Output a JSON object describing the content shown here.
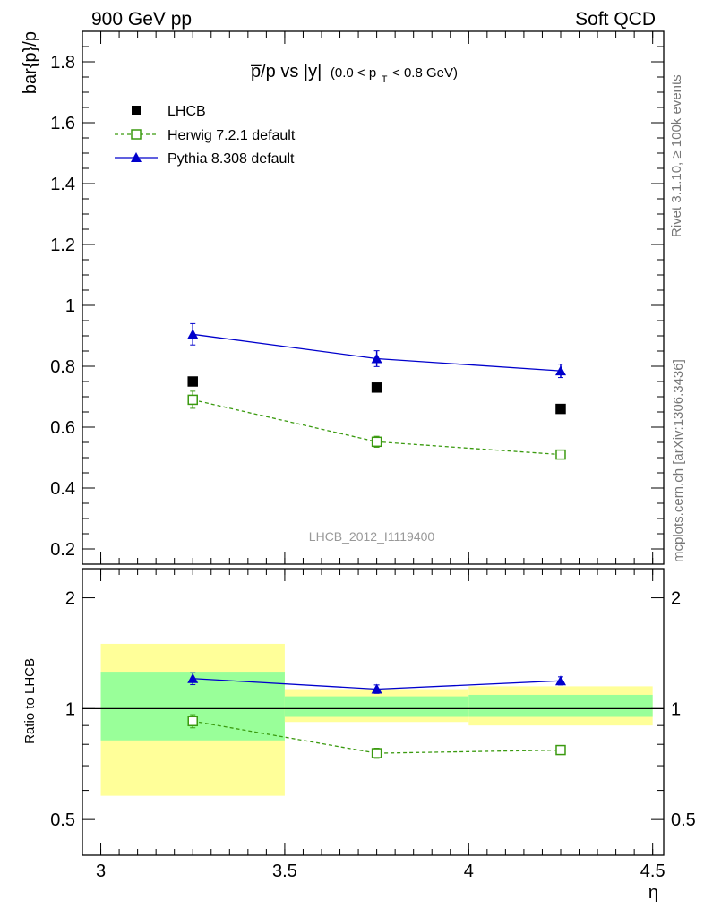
{
  "header": {
    "left": "900 GeV pp",
    "right": "Soft QCD"
  },
  "side_labels": {
    "rivet": "Rivet 3.1.10, ≥ 100k events",
    "mcplots": "mcplots.cern.ch [arXiv:1306.3436]"
  },
  "chart_data": {
    "type": "scatter",
    "title_main": "p̅/p vs |y|",
    "title_sub_before": "(0.0 < p",
    "title_sub_index": "T",
    "title_sub_after": " < 0.8 GeV)",
    "watermark": "LHCB_2012_I1119400",
    "main_panel": {
      "ylabel": "bar{p}/p",
      "ylim": [
        0.15,
        1.9
      ],
      "yticks": [
        0.2,
        0.4,
        0.6,
        0.8,
        1.0,
        1.2,
        1.4,
        1.6,
        1.8
      ],
      "ytick_labels": [
        "0.2",
        "0.4",
        "0.6",
        "0.8",
        "1",
        "1.2",
        "1.4",
        "1.6",
        "1.8"
      ]
    },
    "ratio_panel": {
      "ylabel": "Ratio to LHCB",
      "log_scale": true,
      "ylim": [
        0.4,
        2.4
      ],
      "yticks": [
        0.5,
        1,
        2
      ],
      "ytick_labels": [
        "0.5",
        "1",
        "2"
      ],
      "bands": [
        {
          "x": [
            3.0,
            3.5
          ],
          "stat": [
            0.82,
            1.26
          ],
          "total": [
            0.58,
            1.5
          ]
        },
        {
          "x": [
            3.5,
            4.0
          ],
          "stat": [
            0.95,
            1.08
          ],
          "total": [
            0.92,
            1.13
          ]
        },
        {
          "x": [
            4.0,
            4.5
          ],
          "stat": [
            0.95,
            1.09
          ],
          "total": [
            0.9,
            1.15
          ]
        }
      ],
      "band_colors": {
        "stat": "#99ff99",
        "total": "#ffff99"
      }
    },
    "x": {
      "label": "η",
      "lim": [
        2.95,
        4.53
      ],
      "ticks": [
        3.0,
        3.5,
        4.0,
        4.5
      ],
      "tick_labels": [
        "3",
        "3.5",
        "4",
        "4.5"
      ]
    },
    "series": [
      {
        "name": "LHCB",
        "marker": "square-filled",
        "color": "#000000",
        "x": [
          3.25,
          3.75,
          4.25
        ],
        "y": [
          0.75,
          0.73,
          0.66
        ],
        "err": [
          0.0,
          0.0,
          0.0
        ]
      },
      {
        "name": "Herwig 7.2.1 default",
        "marker": "square-open",
        "line": "dashed",
        "color": "#3a9a0f",
        "x": [
          3.25,
          3.75,
          4.25
        ],
        "y": [
          0.69,
          0.552,
          0.51
        ],
        "err": [
          0.028,
          0.018,
          0.014
        ],
        "ratio": [
          0.925,
          0.757,
          0.772
        ],
        "ratio_err": [
          0.038,
          0.024,
          0.02
        ]
      },
      {
        "name": "Pythia 8.308 default",
        "marker": "triangle-filled",
        "line": "solid",
        "color": "#0000cc",
        "x": [
          3.25,
          3.75,
          4.25
        ],
        "y": [
          0.905,
          0.825,
          0.785
        ],
        "err": [
          0.035,
          0.026,
          0.022
        ],
        "ratio": [
          1.207,
          1.13,
          1.19
        ],
        "ratio_err": [
          0.045,
          0.03,
          0.03
        ]
      }
    ]
  }
}
